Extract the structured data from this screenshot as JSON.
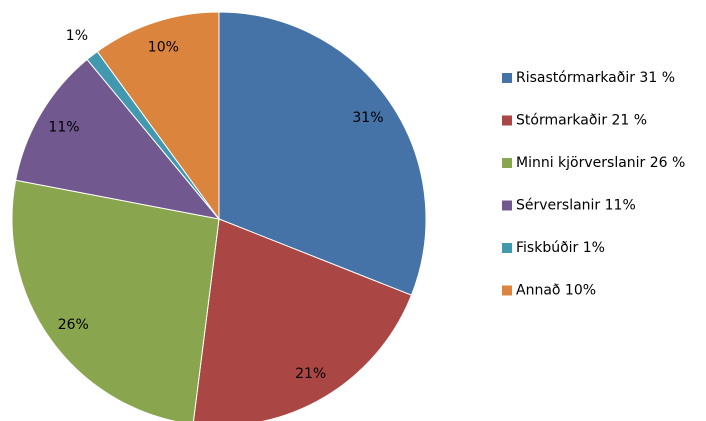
{
  "chart_data": {
    "type": "pie",
    "categories": [
      "Risastórmarkaðir 31 %",
      "Stórmarkaðir 21 %",
      "Minni kjörverslanir 26 %",
      "Sérverslanir 11%",
      "Fiskbúðir 1%",
      "Annað 10%"
    ],
    "values": [
      31,
      21,
      26,
      11,
      1,
      10
    ],
    "value_labels": [
      "31%",
      "21%",
      "26%",
      "11%",
      "1%",
      "10%"
    ],
    "colors": [
      "#4572a7",
      "#aa4643",
      "#89a54e",
      "#71588f",
      "#4198af",
      "#db843d"
    ],
    "legend": "right"
  }
}
